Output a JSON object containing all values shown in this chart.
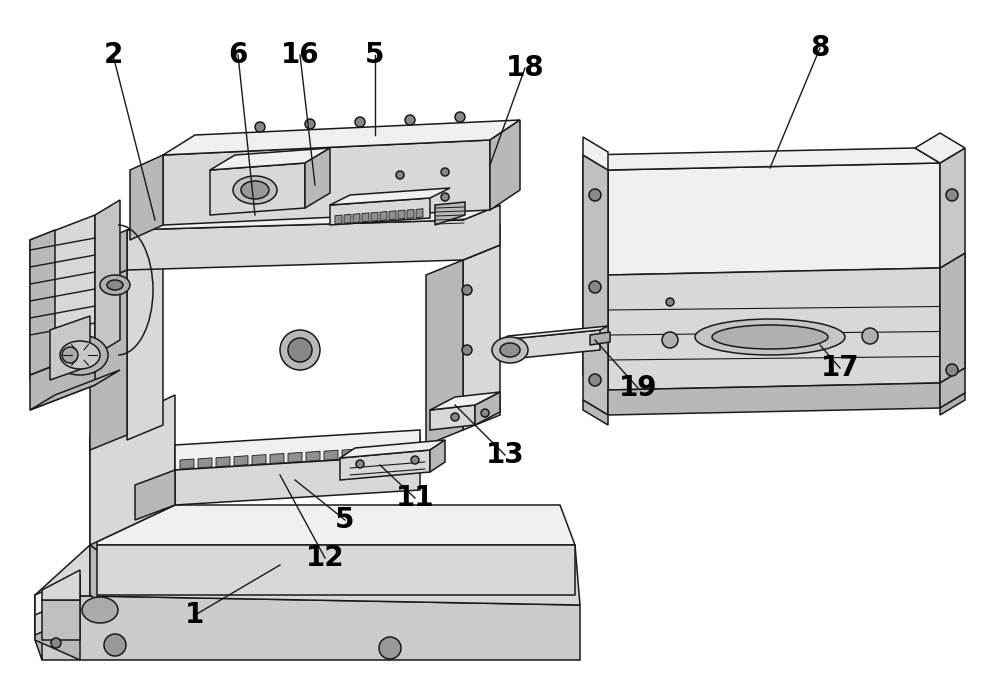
{
  "background_color": "#ffffff",
  "line_color": "#1a1a1a",
  "face_light": "#f0f0f0",
  "face_mid": "#d8d8d8",
  "face_dark": "#b8b8b8",
  "face_darkest": "#a0a0a0",
  "label_fontsize": 20,
  "figsize": [
    10.0,
    6.79
  ],
  "dpi": 100,
  "labels": [
    [
      "1",
      195,
      615,
      280,
      565
    ],
    [
      "2",
      113,
      55,
      155,
      220
    ],
    [
      "5",
      375,
      55,
      375,
      135
    ],
    [
      "5",
      345,
      520,
      295,
      480
    ],
    [
      "6",
      238,
      55,
      255,
      215
    ],
    [
      "8",
      820,
      48,
      770,
      168
    ],
    [
      "11",
      415,
      498,
      380,
      465
    ],
    [
      "12",
      325,
      558,
      280,
      475
    ],
    [
      "13",
      505,
      455,
      455,
      405
    ],
    [
      "16",
      300,
      55,
      315,
      185
    ],
    [
      "17",
      840,
      368,
      820,
      345
    ],
    [
      "18",
      525,
      68,
      490,
      165
    ],
    [
      "19",
      638,
      388,
      595,
      340
    ]
  ]
}
